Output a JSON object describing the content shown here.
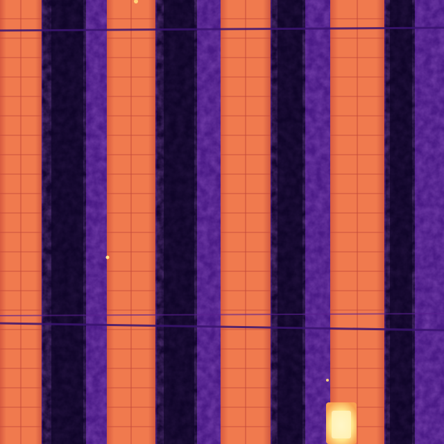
{
  "image": {
    "kind": "thermal aerial view of solar panel rows",
    "palette": {
      "cold": "#12052e",
      "soil": "#2a0a5a",
      "verge": "#4a1a86",
      "panel_edge": "#b8443a",
      "panel": "#f07a4e",
      "panel_hot": "#f89a5a",
      "cell_line": "#c9503a",
      "hotspot": "#ffe58a",
      "hotspot_core": "#fff6c8"
    }
  }
}
